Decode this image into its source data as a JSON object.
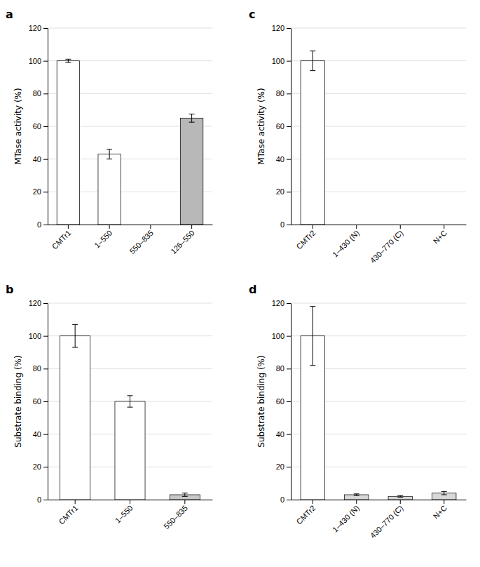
{
  "chart_data": [
    {
      "type": "bar",
      "title": "a",
      "categories": [
        "CMTr1",
        "1–550",
        "550–835",
        "126–550"
      ],
      "values": [
        100,
        43,
        0,
        65
      ],
      "errors": [
        1,
        3,
        0,
        2.5
      ],
      "colors": [
        "white",
        "white",
        "white",
        "#b8b8b8"
      ],
      "ylabel": "MTase activity (%)",
      "ylim": [
        0,
        120
      ],
      "yticks": [
        0,
        20,
        40,
        60,
        80,
        100,
        120
      ],
      "grid": true
    },
    {
      "type": "bar",
      "title": "b",
      "categories": [
        "CMTr1",
        "1–550",
        "550–835"
      ],
      "values": [
        100,
        60,
        3
      ],
      "errors": [
        7,
        3.5,
        1
      ],
      "colors": [
        "white",
        "white",
        "#c8c8c8"
      ],
      "ylabel": "Substrate binding (%)",
      "ylim": [
        0,
        120
      ],
      "yticks": [
        0,
        20,
        40,
        60,
        80,
        100,
        120
      ],
      "grid": true
    },
    {
      "type": "bar",
      "title": "c",
      "categories": [
        "CMTr2",
        "1–430 (N)",
        "430–770 (C)",
        "N+C"
      ],
      "values": [
        100,
        0,
        0,
        0
      ],
      "errors": [
        6,
        0,
        0,
        0
      ],
      "colors": [
        "white",
        "white",
        "white",
        "white"
      ],
      "ylabel": "MTase activity (%)",
      "ylim": [
        0,
        120
      ],
      "yticks": [
        0,
        20,
        40,
        60,
        80,
        100,
        120
      ],
      "grid": true
    },
    {
      "type": "bar",
      "title": "d",
      "categories": [
        "CMTr2",
        "1–430 (N)",
        "430–770 (C)",
        "N+C"
      ],
      "values": [
        100,
        3,
        2,
        4
      ],
      "errors": [
        18,
        0.5,
        0.5,
        1
      ],
      "colors": [
        "white",
        "#d8d8d8",
        "#d8d8d8",
        "#d8d8d8"
      ],
      "ylabel": "Substrate binding (%)",
      "ylim": [
        0,
        120
      ],
      "yticks": [
        0,
        20,
        40,
        60,
        80,
        100,
        120
      ],
      "grid": true
    }
  ]
}
